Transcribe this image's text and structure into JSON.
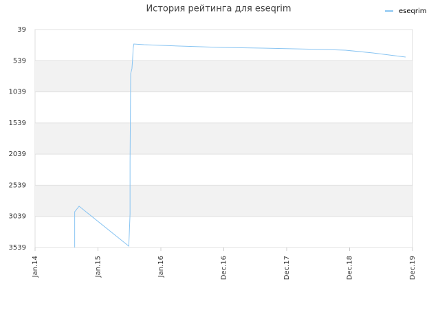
{
  "chart_data": {
    "type": "line",
    "title": "История рейтинга для eseqrim",
    "x": [
      2014.63,
      2014.63,
      2014.7,
      2015.49,
      2015.51,
      2015.51,
      2015.52,
      2015.54,
      2015.55,
      2015.56,
      2015.57,
      2015.73,
      2016.3,
      2016.96,
      2017.62,
      2018.6,
      2018.93,
      2019.37,
      2019.89
    ],
    "series": [
      {
        "name": "eseqrim",
        "color": "#88c4f2",
        "values": [
          3539,
          2965,
          2876,
          3517,
          3000,
          2159,
          746,
          668,
          525,
          337,
          271,
          282,
          304,
          326,
          337,
          359,
          370,
          414,
          481
        ]
      }
    ],
    "xlim": [
      2014,
      2020
    ],
    "xticks": [
      {
        "value": 2014,
        "label": "Jan.14"
      },
      {
        "value": 2015,
        "label": "Jan.15"
      },
      {
        "value": 2016,
        "label": "Jan.16"
      },
      {
        "value": 2017,
        "label": "Dec.16"
      },
      {
        "value": 2018,
        "label": "Dec.17"
      },
      {
        "value": 2019,
        "label": "Dec.18"
      },
      {
        "value": 2020,
        "label": "Dec.19"
      }
    ],
    "ylim": [
      39,
      3539
    ],
    "y_inverted": true,
    "yticks": [
      39,
      539,
      1039,
      1539,
      2039,
      2539,
      3039,
      3539
    ],
    "grid": true,
    "legend": "top-right"
  }
}
